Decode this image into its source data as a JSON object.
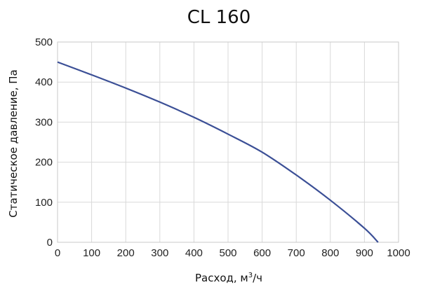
{
  "chart_data": {
    "type": "line",
    "title": "CL 160",
    "xlabel_prefix": "Расход, м",
    "xlabel_sup": "3",
    "xlabel_suffix": "/ч",
    "ylabel": "Статическое давление, Па",
    "xlim": [
      0,
      1000
    ],
    "ylim": [
      0,
      500
    ],
    "x_ticks": [
      0,
      100,
      200,
      300,
      400,
      500,
      600,
      700,
      800,
      900,
      1000
    ],
    "y_ticks": [
      0,
      100,
      200,
      300,
      400,
      500
    ],
    "grid": true,
    "series": [
      {
        "color": "#3b4f96",
        "x": [
          0,
          100,
          200,
          300,
          400,
          500,
          600,
          700,
          800,
          900,
          940
        ],
        "y": [
          450,
          418,
          385,
          350,
          312,
          270,
          225,
          168,
          105,
          35,
          0
        ]
      }
    ]
  }
}
